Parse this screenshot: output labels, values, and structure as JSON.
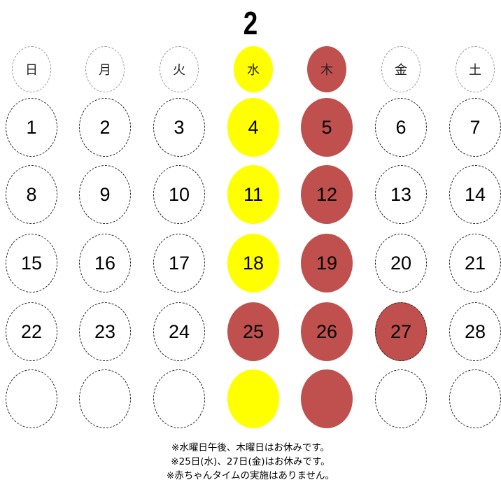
{
  "calendar": {
    "month": "2",
    "weekdays": [
      "日",
      "月",
      "火",
      "水",
      "木",
      "金",
      "土"
    ],
    "weekday_styles": [
      "plain",
      "plain",
      "plain",
      "yellow",
      "red",
      "plain",
      "plain"
    ],
    "weeks": [
      [
        "1",
        "2",
        "3",
        "4",
        "5",
        "6",
        "7"
      ],
      [
        "8",
        "9",
        "10",
        "11",
        "12",
        "13",
        "14"
      ],
      [
        "15",
        "16",
        "17",
        "18",
        "19",
        "20",
        "21"
      ],
      [
        "22",
        "23",
        "24",
        "25",
        "26",
        "27",
        "28"
      ],
      [
        "",
        "",
        "",
        "",
        "",
        "",
        ""
      ]
    ],
    "cell_styles": [
      [
        "plain",
        "plain",
        "plain",
        "yellow",
        "red",
        "plain",
        "plain"
      ],
      [
        "plain",
        "plain",
        "plain",
        "yellow",
        "red",
        "plain",
        "plain"
      ],
      [
        "plain",
        "plain",
        "plain",
        "yellow",
        "red",
        "plain",
        "plain"
      ],
      [
        "plain",
        "plain",
        "plain",
        "red",
        "red",
        "red outlined",
        "plain"
      ],
      [
        "plain",
        "plain",
        "plain",
        "yellow",
        "red",
        "plain",
        "plain"
      ]
    ],
    "colors": {
      "closed_afternoon": "#ffff00",
      "closed": "#c0504d"
    }
  },
  "notes": [
    "※水曜日午後、木曜日はお休みです。",
    "※25日(水)、27日(金)はお休みです。",
    "※赤ちゃんタイムの実施はありません。"
  ]
}
